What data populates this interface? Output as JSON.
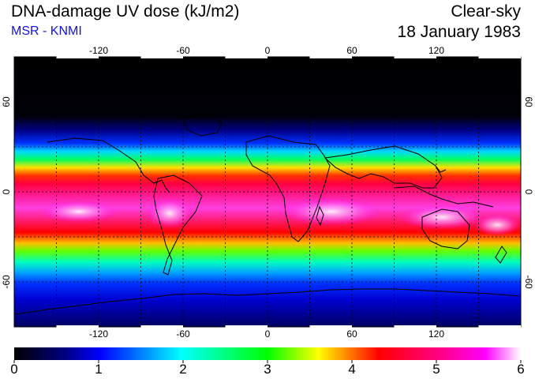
{
  "header": {
    "title": "DNA-damage UV dose (kJ/m2)",
    "subtitle": "MSR - KNMI",
    "condition": "Clear-sky",
    "date": "18 January 1983"
  },
  "map": {
    "projection": "equirectangular",
    "lon_range": [
      -180,
      180
    ],
    "lat_range": [
      -90,
      90
    ],
    "grid": true,
    "lon_ticks": [
      "-120",
      "-60",
      "0",
      "60",
      "120"
    ],
    "lat_ticks": [
      "60",
      "0",
      "-60"
    ],
    "colors": {
      "zero": "#000000",
      "navy": "#000080",
      "blue": "#0000ff",
      "cyan": "#00ffff",
      "green": "#00ff00",
      "yellow": "#ffff00",
      "red": "#ff0000",
      "magenta": "#ff00ff",
      "white": "#ffffff"
    }
  },
  "colorbar": {
    "min": 0,
    "max": 6,
    "labels": [
      "0",
      "1",
      "2",
      "3",
      "4",
      "5",
      "6"
    ]
  }
}
